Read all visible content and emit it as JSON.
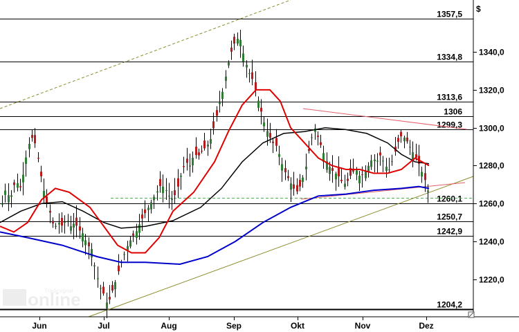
{
  "chart_data": {
    "type": "candlestick",
    "currency_label": "$",
    "x_months": [
      "Jun",
      "Jul",
      "Aug",
      "Sep",
      "Okt",
      "Nov",
      "Dez"
    ],
    "y_ticks": [
      "1340,0",
      "1320,0",
      "1300,0",
      "1280,0",
      "1260,0",
      "1240,0",
      "1220,0"
    ],
    "y_tick_values": [
      1340,
      1320,
      1300,
      1280,
      1260,
      1240,
      1220
    ],
    "ylim": [
      1200,
      1362
    ],
    "levels": [
      {
        "label": "1357,5",
        "value": 1357.5
      },
      {
        "label": "1334,8",
        "value": 1334.8
      },
      {
        "label": "1313,6",
        "value": 1313.6
      },
      {
        "label": "1306",
        "value": 1306.0
      },
      {
        "label": "1299,3",
        "value": 1299.3
      },
      {
        "label": "1260,1",
        "value": 1260.1
      },
      {
        "label": "1250,7",
        "value": 1250.7
      },
      {
        "label": "1242,9",
        "value": 1242.9
      },
      {
        "label": "1204,2",
        "value": 1204.2
      }
    ],
    "support_dashed_level": 1263.0,
    "colors": {
      "up": "#2e7d32",
      "down": "#b71c1c",
      "ma_fast": "#e00000",
      "ma_mid": "#000000",
      "ma_slow": "#0000cc",
      "trend": "#8b8b2a",
      "triangle": "#e0606a",
      "dashed": "#4caf50",
      "grid": "#000000"
    },
    "watermark": "Tradesignal online"
  }
}
